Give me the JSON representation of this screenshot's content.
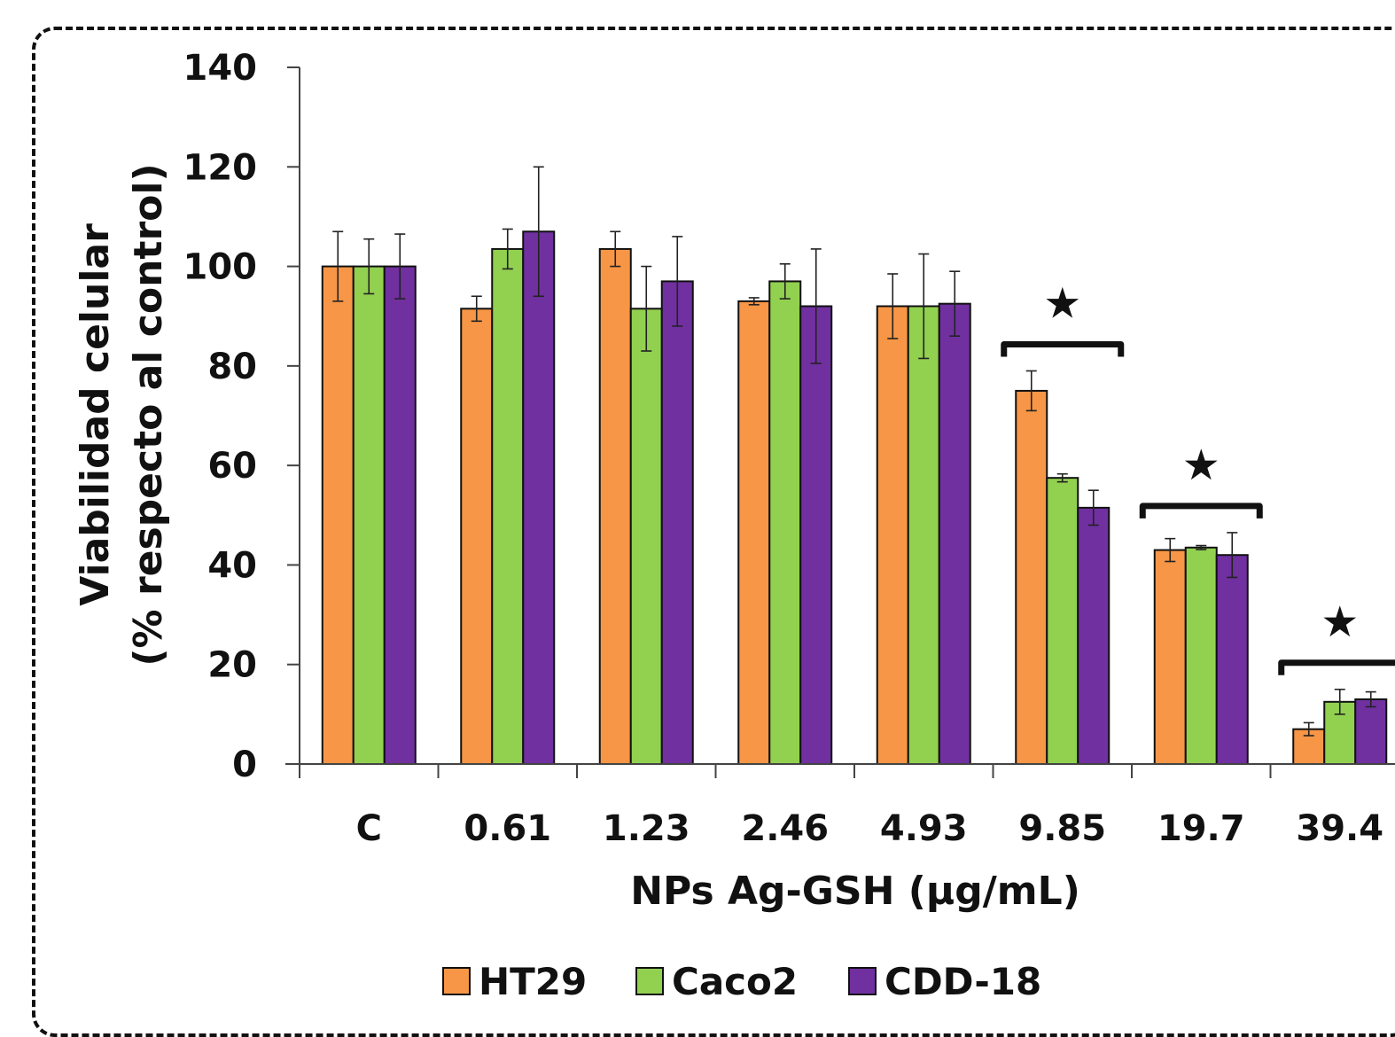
{
  "chart_data": {
    "type": "bar",
    "ylabel_line1": "Viabilidad celular",
    "ylabel_line2": "(% respecto al control)",
    "xlabel": "NPs Ag-GSH (μg/mL)",
    "categories": [
      "C",
      "0.61",
      "1.23",
      "2.46",
      "4.93",
      "9.85",
      "19.7",
      "39.4"
    ],
    "ylim": [
      0,
      140
    ],
    "yticks": [
      0,
      20,
      40,
      60,
      80,
      100,
      120,
      140
    ],
    "grid": false,
    "legend_position": "bottom",
    "series": [
      {
        "name": "HT29",
        "color": "#F79646",
        "values": [
          100,
          91.5,
          103.5,
          93,
          92,
          75,
          43,
          7
        ],
        "errors": [
          7,
          2.5,
          3.5,
          0.7,
          6.5,
          4,
          2.3,
          1.3
        ]
      },
      {
        "name": "Caco2",
        "color": "#92D050",
        "values": [
          100,
          103.5,
          91.5,
          97,
          92,
          57.5,
          43.5,
          12.5
        ],
        "errors": [
          5.5,
          4,
          8.5,
          3.5,
          10.5,
          0.8,
          0.4,
          2.5
        ]
      },
      {
        "name": "CDD-18",
        "color": "#7030A0",
        "values": [
          100,
          107,
          97,
          92,
          92.5,
          51.5,
          42,
          13
        ],
        "errors": [
          6.5,
          13,
          9,
          11.5,
          6.5,
          3.5,
          4.5,
          1.5
        ]
      }
    ],
    "significance": [
      {
        "category": "9.85",
        "symbol": "★"
      },
      {
        "category": "19.7",
        "symbol": "★"
      },
      {
        "category": "39.4",
        "symbol": "★"
      }
    ]
  }
}
